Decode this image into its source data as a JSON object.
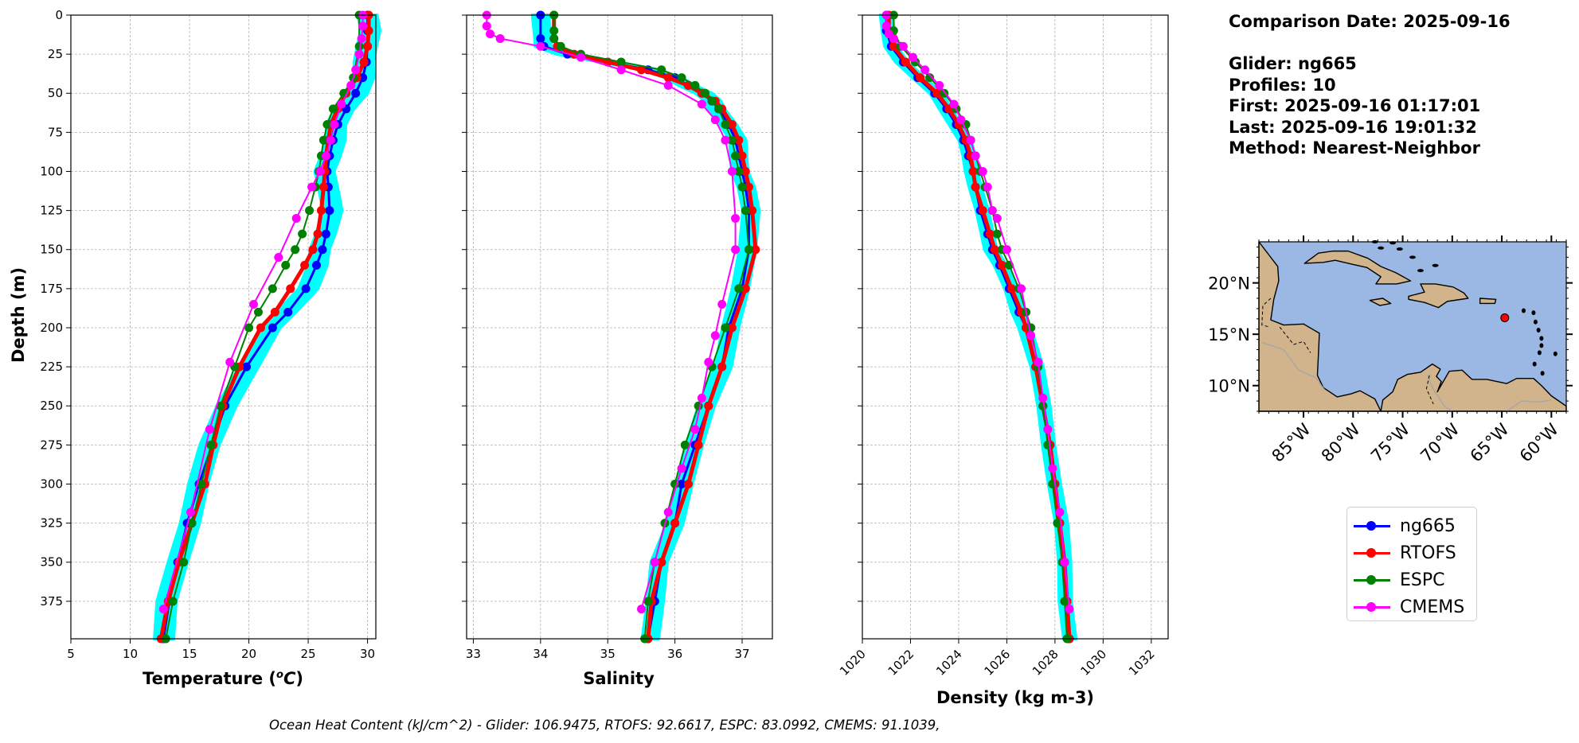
{
  "chart_data": [
    {
      "type": "line",
      "xlabel": "Temperature (°C)",
      "ylabel": "Depth (m)",
      "xlim": [
        5,
        30.7
      ],
      "ylim": [
        399,
        0
      ],
      "xticks": [
        5,
        10,
        15,
        20,
        25,
        30
      ],
      "yticks": [
        0,
        25,
        50,
        75,
        100,
        125,
        150,
        175,
        200,
        225,
        250,
        275,
        300,
        325,
        350,
        375
      ],
      "grid": true,
      "series": [
        {
          "name": "ng665",
          "color": "#0000ff",
          "depth": [
            0,
            10,
            20,
            30,
            40,
            50,
            60,
            70,
            80,
            90,
            100,
            110,
            125,
            140,
            150,
            160,
            175,
            190,
            200,
            225,
            250,
            275,
            300,
            325,
            350,
            375,
            399
          ],
          "values": [
            30.0,
            30.0,
            30.0,
            29.9,
            29.6,
            29.0,
            28.2,
            27.5,
            27.1,
            26.8,
            26.6,
            26.7,
            26.8,
            26.5,
            26.2,
            25.7,
            24.8,
            23.3,
            22.0,
            19.8,
            18.0,
            16.9,
            15.8,
            14.8,
            14.0,
            13.3,
            12.8
          ]
        },
        {
          "name": "RTOFS",
          "color": "#ff0000",
          "depth": [
            0,
            10,
            20,
            30,
            40,
            50,
            60,
            70,
            80,
            90,
            100,
            110,
            125,
            140,
            150,
            160,
            175,
            190,
            200,
            225,
            250,
            275,
            300,
            325,
            350,
            375,
            399
          ],
          "values": [
            30.1,
            30.1,
            30.0,
            29.7,
            29.1,
            28.2,
            27.5,
            26.9,
            26.7,
            26.5,
            26.4,
            26.3,
            26.1,
            25.8,
            25.4,
            24.7,
            23.5,
            22.2,
            21.0,
            19.2,
            17.8,
            17.0,
            16.3,
            15.2,
            14.1,
            13.2,
            12.6
          ]
        },
        {
          "name": "ESPC",
          "color": "#008000",
          "depth": [
            0,
            20,
            40,
            50,
            60,
            70,
            80,
            90,
            100,
            110,
            125,
            140,
            150,
            160,
            175,
            190,
            200,
            225,
            250,
            275,
            300,
            325,
            350,
            375,
            399
          ],
          "values": [
            29.3,
            29.3,
            28.8,
            28.0,
            27.1,
            26.6,
            26.3,
            26.1,
            25.9,
            25.6,
            25.1,
            24.5,
            23.9,
            23.1,
            22.0,
            20.8,
            20.0,
            18.8,
            17.6,
            16.8,
            16.0,
            15.2,
            14.5,
            13.6,
            13.0
          ]
        },
        {
          "name": "CMEMS",
          "color": "#ff00ff",
          "depth": [
            0,
            7,
            15,
            25,
            35,
            45,
            57,
            70,
            80,
            90,
            100,
            110,
            130,
            155,
            185,
            222,
            265,
            318,
            380
          ],
          "values": [
            29.6,
            29.6,
            29.5,
            29.3,
            29.0,
            28.6,
            27.8,
            27.2,
            26.9,
            26.5,
            26.0,
            25.3,
            24.0,
            22.5,
            20.4,
            18.4,
            16.7,
            15.1,
            12.8
          ]
        }
      ],
      "band": {
        "name": "ng665 profiles",
        "color": "#00ffff",
        "width": 0.8
      }
    },
    {
      "type": "line",
      "xlabel": "Salinity",
      "xlim": [
        32.9,
        37.45
      ],
      "ylim": [
        399,
        0
      ],
      "xticks": [
        33,
        34,
        35,
        36,
        37
      ],
      "grid": true,
      "series": [
        {
          "name": "ng665",
          "color": "#0000ff",
          "depth": [
            0,
            15,
            20,
            25,
            30,
            35,
            40,
            45,
            50,
            55,
            60,
            70,
            80,
            90,
            100,
            110,
            125,
            150,
            175,
            200,
            225,
            250,
            275,
            300,
            325,
            350,
            375,
            399
          ],
          "values": [
            34.0,
            34.0,
            34.05,
            34.4,
            35.0,
            35.6,
            36.0,
            36.2,
            36.4,
            36.55,
            36.65,
            36.8,
            36.9,
            36.95,
            37.0,
            37.05,
            37.1,
            37.1,
            37.0,
            36.8,
            36.7,
            36.5,
            36.3,
            36.1,
            36.0,
            35.8,
            35.7,
            35.6
          ]
        },
        {
          "name": "RTOFS",
          "color": "#ff0000",
          "depth": [
            0,
            15,
            20,
            25,
            30,
            35,
            40,
            45,
            50,
            55,
            60,
            70,
            80,
            90,
            100,
            110,
            125,
            150,
            175,
            200,
            225,
            250,
            275,
            300,
            325,
            350,
            375,
            399
          ],
          "values": [
            34.2,
            34.2,
            34.25,
            34.5,
            35.0,
            35.5,
            35.9,
            36.2,
            36.4,
            36.6,
            36.7,
            36.85,
            36.95,
            37.0,
            37.05,
            37.1,
            37.15,
            37.2,
            37.05,
            36.85,
            36.7,
            36.5,
            36.35,
            36.2,
            36.0,
            35.8,
            35.65,
            35.6
          ]
        },
        {
          "name": "ESPC",
          "color": "#008000",
          "depth": [
            0,
            10,
            15,
            20,
            25,
            30,
            35,
            40,
            45,
            50,
            55,
            60,
            70,
            80,
            90,
            100,
            110,
            125,
            150,
            175,
            200,
            225,
            250,
            275,
            300,
            325,
            350,
            375,
            399
          ],
          "values": [
            34.2,
            34.2,
            34.2,
            34.3,
            34.6,
            35.2,
            35.8,
            36.1,
            36.3,
            36.45,
            36.55,
            36.65,
            36.75,
            36.85,
            36.9,
            36.95,
            37.0,
            37.05,
            37.1,
            36.95,
            36.75,
            36.55,
            36.35,
            36.15,
            36.0,
            35.85,
            35.7,
            35.6,
            35.55
          ]
        },
        {
          "name": "CMEMS",
          "color": "#ff00ff",
          "depth": [
            0,
            7,
            12,
            15,
            20,
            27,
            35,
            45,
            57,
            67,
            80,
            100,
            130,
            150,
            185,
            205,
            222,
            245,
            265,
            290,
            318,
            350,
            380
          ],
          "values": [
            33.2,
            33.2,
            33.25,
            33.4,
            34.0,
            34.6,
            35.2,
            35.9,
            36.4,
            36.6,
            36.75,
            36.85,
            36.9,
            36.9,
            36.7,
            36.6,
            36.5,
            36.4,
            36.3,
            36.1,
            35.9,
            35.7,
            35.5
          ]
        }
      ],
      "band": {
        "name": "ng665 profiles",
        "color": "#00ffff",
        "width": 0.12
      }
    },
    {
      "type": "line",
      "xlabel": "Density (kg m-3)",
      "xlim": [
        1020,
        1032.7
      ],
      "ylim": [
        399,
        0
      ],
      "xticks": [
        1020,
        1022,
        1024,
        1026,
        1028,
        1030,
        1032
      ],
      "grid": true,
      "series": [
        {
          "name": "ng665",
          "color": "#0000ff",
          "depth": [
            0,
            10,
            20,
            30,
            40,
            50,
            60,
            70,
            80,
            90,
            100,
            110,
            125,
            140,
            150,
            160,
            175,
            190,
            200,
            225,
            250,
            275,
            300,
            325,
            350,
            375,
            399
          ],
          "values": [
            1021.0,
            1021.0,
            1021.2,
            1021.7,
            1022.3,
            1023.0,
            1023.5,
            1023.9,
            1024.2,
            1024.4,
            1024.6,
            1024.7,
            1024.9,
            1025.2,
            1025.4,
            1025.7,
            1026.1,
            1026.5,
            1026.8,
            1027.2,
            1027.5,
            1027.8,
            1028.0,
            1028.2,
            1028.4,
            1028.5,
            1028.6
          ]
        },
        {
          "name": "RTOFS",
          "color": "#ff0000",
          "depth": [
            0,
            10,
            20,
            30,
            40,
            50,
            60,
            70,
            80,
            90,
            100,
            110,
            125,
            140,
            150,
            160,
            175,
            190,
            200,
            225,
            250,
            275,
            300,
            325,
            350,
            375,
            399
          ],
          "values": [
            1021.1,
            1021.1,
            1021.3,
            1021.8,
            1022.4,
            1023.1,
            1023.6,
            1024.0,
            1024.3,
            1024.5,
            1024.6,
            1024.7,
            1025.0,
            1025.3,
            1025.5,
            1025.8,
            1026.2,
            1026.6,
            1026.8,
            1027.2,
            1027.5,
            1027.8,
            1028.0,
            1028.2,
            1028.4,
            1028.5,
            1028.6
          ]
        },
        {
          "name": "ESPC",
          "color": "#008000",
          "depth": [
            0,
            10,
            20,
            30,
            40,
            50,
            60,
            70,
            80,
            90,
            100,
            110,
            125,
            140,
            150,
            160,
            175,
            190,
            200,
            225,
            250,
            275,
            300,
            325,
            350,
            375,
            399
          ],
          "values": [
            1021.3,
            1021.3,
            1021.6,
            1022.2,
            1022.8,
            1023.4,
            1023.9,
            1024.3,
            1024.5,
            1024.7,
            1024.9,
            1025.1,
            1025.4,
            1025.6,
            1025.8,
            1026.1,
            1026.5,
            1026.8,
            1027.0,
            1027.3,
            1027.5,
            1027.7,
            1027.9,
            1028.1,
            1028.3,
            1028.4,
            1028.5
          ]
        },
        {
          "name": "CMEMS",
          "color": "#ff00ff",
          "depth": [
            0,
            7,
            12,
            15,
            20,
            27,
            35,
            45,
            57,
            67,
            80,
            90,
            100,
            110,
            125,
            130,
            150,
            175,
            205,
            222,
            245,
            265,
            290,
            318,
            350,
            380
          ],
          "values": [
            1021.0,
            1021.0,
            1021.1,
            1021.3,
            1021.7,
            1022.1,
            1022.6,
            1023.2,
            1023.8,
            1024.1,
            1024.5,
            1024.7,
            1025.0,
            1025.2,
            1025.4,
            1025.6,
            1026.0,
            1026.6,
            1027.0,
            1027.3,
            1027.5,
            1027.7,
            1027.9,
            1028.2,
            1028.4,
            1028.6
          ]
        }
      ],
      "band": {
        "name": "ng665 profiles",
        "color": "#00ffff",
        "width": 0.25
      }
    }
  ],
  "legend": {
    "placement": "bottom-right",
    "entries": [
      {
        "name": "ng665",
        "color": "#0000ff"
      },
      {
        "name": "RTOFS",
        "color": "#ff0000"
      },
      {
        "name": "ESPC",
        "color": "#008000"
      },
      {
        "name": "CMEMS",
        "color": "#ff00ff"
      }
    ]
  },
  "info": {
    "comparison_date": "Comparison Date: 2025-09-16",
    "glider": "Glider: ng665",
    "profiles": "Profiles: 10",
    "first": "First: 2025-09-16 01:17:01",
    "last": "Last: 2025-09-16 19:01:32",
    "method": "Method: Nearest-Neighbor"
  },
  "map": {
    "lat_range": [
      7.5,
      24
    ],
    "lon_range": [
      -89.5,
      -58.5
    ],
    "lat_ticks": [
      "10°N",
      "15°N",
      "20°N"
    ],
    "lat_tick_values": [
      10,
      15,
      20
    ],
    "lon_ticks": [
      "85°W",
      "80°W",
      "75°W",
      "70°W",
      "65°W",
      "60°W"
    ],
    "lon_tick_values": [
      -85,
      -80,
      -75,
      -70,
      -65,
      -60
    ],
    "ocean_color": "#9ab8e3",
    "land_color": "#d2b48c",
    "glider_position": {
      "lon": -64.7,
      "lat": 16.6,
      "color": "#ff0000"
    }
  },
  "footer": "Ocean Heat Content (kJ/cm^2) - Glider: 106.9475,  RTOFS: 92.6617,  ESPC: 83.0992,  CMEMS: 91.1039,"
}
